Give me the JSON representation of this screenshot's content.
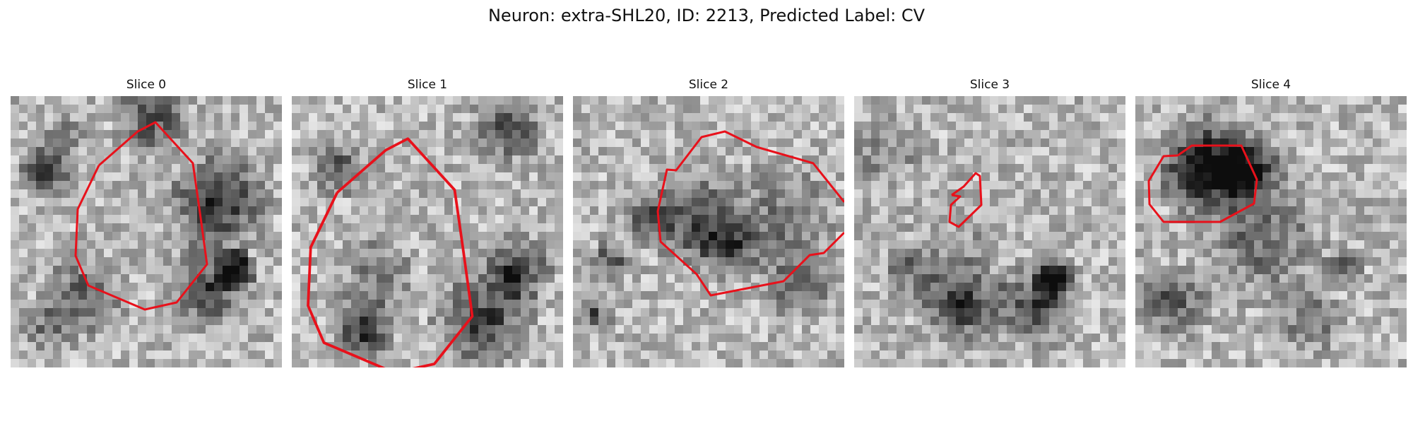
{
  "figure": {
    "title": "Neuron: extra-SHL20, ID: 2213, Predicted Label: CV"
  },
  "panels": [
    {
      "title": "Slice 0"
    },
    {
      "title": "Slice 1"
    },
    {
      "title": "Slice 2"
    },
    {
      "title": "Slice 3"
    },
    {
      "title": "Slice 4"
    }
  ],
  "colors": {
    "contour": "#e8111b",
    "background": "#ffffff"
  }
}
